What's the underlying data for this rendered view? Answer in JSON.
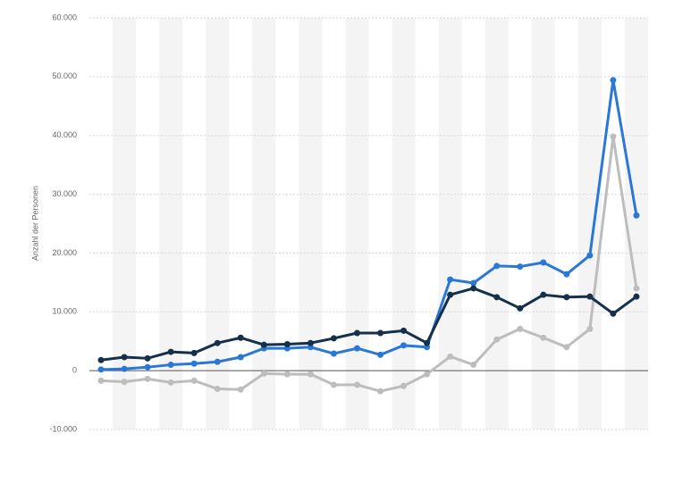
{
  "chart_data": {
    "type": "line",
    "y_label": "Anzahl der Personen",
    "categories": [
      null,
      null,
      null,
      null,
      null,
      null,
      null,
      null,
      null,
      null,
      null,
      null,
      null,
      null,
      null,
      null,
      null,
      null,
      null,
      null,
      null,
      null,
      null,
      null
    ],
    "series": [
      {
        "color": "#bdbdbd",
        "values": [
          -1700,
          -1900,
          -1400,
          -2000,
          -1700,
          -3100,
          -3200,
          -500,
          -600,
          -600,
          -2400,
          -2400,
          -3500,
          -2600,
          -600,
          2400,
          1000,
          5300,
          7100,
          5600,
          4000,
          7100,
          39800,
          14000
        ]
      },
      {
        "color": "#2a78d6",
        "values": [
          200,
          300,
          600,
          1000,
          1200,
          1500,
          2300,
          3800,
          3800,
          4000,
          2900,
          3800,
          2700,
          4300,
          4000,
          15500,
          14900,
          17800,
          17700,
          18400,
          16400,
          19600,
          49400,
          26400
        ]
      },
      {
        "color": "#14304a",
        "values": [
          1800,
          2300,
          2100,
          3200,
          3000,
          4700,
          5600,
          4400,
          4500,
          4700,
          5500,
          6400,
          6400,
          6800,
          4700,
          12900,
          14000,
          12500,
          10600,
          12900,
          12500,
          12600,
          9700,
          12600
        ]
      }
    ],
    "ylim": [
      -10000,
      60000
    ],
    "yticks": [
      {
        "value": -10000,
        "label": "-10.000"
      },
      0,
      {
        "value": 10000,
        "label": "10.000"
      },
      {
        "value": 20000,
        "label": "20.000"
      },
      {
        "value": 30000,
        "label": "30.000"
      },
      {
        "value": 40000,
        "label": "40.000"
      },
      {
        "value": 50000,
        "label": "50.000"
      },
      {
        "value": 60000,
        "label": "60.000"
      }
    ],
    "grid": true
  }
}
